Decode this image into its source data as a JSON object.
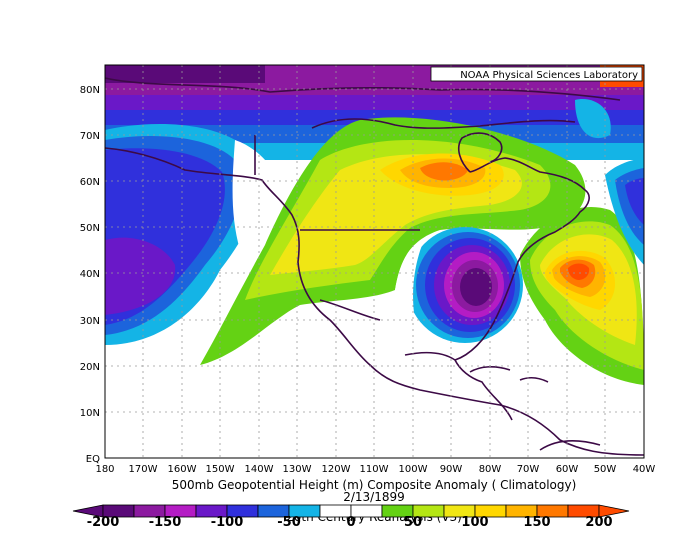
{
  "header": {
    "credit": "NOAA Physical Sciences Laboratory"
  },
  "captions": {
    "line1": "500mb Geopotential Height (m) Composite Anomaly ( Climatology)",
    "line2": "2/13/1899",
    "line3": "20th Century Reanalysis (V3)"
  },
  "axes": {
    "lat_labels": [
      "80N",
      "70N",
      "60N",
      "50N",
      "40N",
      "30N",
      "20N",
      "10N",
      "EQ"
    ],
    "lon_labels": [
      "180",
      "170W",
      "160W",
      "150W",
      "140W",
      "130W",
      "120W",
      "110W",
      "100W",
      "90W",
      "80W",
      "70W",
      "60W",
      "50W",
      "40W"
    ]
  },
  "colorbar": {
    "tick_labels": [
      "-200",
      "-150",
      "-100",
      "-50",
      "0",
      "50",
      "100",
      "150",
      "200"
    ],
    "colors": [
      "#5a0a78",
      "#8c1aa0",
      "#b41cc4",
      "#6a18c8",
      "#3030dc",
      "#1c64dc",
      "#14b4e6",
      "#ffffff",
      "#ffffff",
      "#64d214",
      "#b4e614",
      "#f0e614",
      "#ffd700",
      "#ffb400",
      "#ff7800",
      "#ff4b00"
    ]
  },
  "palette": {
    "coast": "#3c0a46",
    "grid": "#9a9a9a",
    "land_fill": "#ffffff"
  },
  "labels": {
    "positive_centers": [
      "Central Canada ridge",
      "Western North Atlantic ridge",
      "Western US ridge"
    ],
    "negative_centers": [
      "Eastern US trough",
      "Gulf of Alaska trough",
      "Arctic trough"
    ]
  }
}
